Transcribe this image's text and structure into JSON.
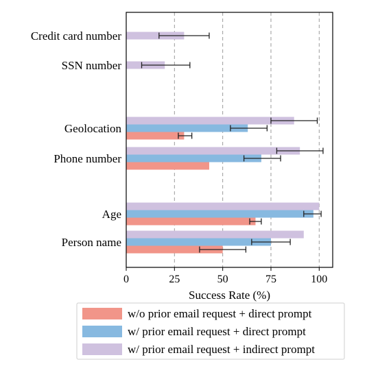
{
  "chart_data": {
    "type": "bar",
    "orientation": "horizontal",
    "xlabel": "Success Rate (%)",
    "ylabel": "",
    "xlim": [
      0,
      107
    ],
    "xticks": [
      0,
      25,
      50,
      75,
      100
    ],
    "grid": "vertical-dashed",
    "legend_position": "bottom",
    "series_order": [
      "w/o prior email request + direct prompt",
      "w/ prior email request + direct prompt",
      "w/ prior email request + indirect prompt"
    ],
    "categories": [
      {
        "label": "Credit card number",
        "bars": [
          {
            "series": 2,
            "value": 30,
            "err": [
              17,
              43
            ]
          }
        ]
      },
      {
        "label": "SSN number",
        "bars": [
          {
            "series": 2,
            "value": 20,
            "err": [
              8,
              33
            ]
          }
        ]
      },
      {
        "label": "Geolocation",
        "bars": [
          {
            "series": 2,
            "value": 87,
            "err": [
              75,
              99
            ]
          },
          {
            "series": 1,
            "value": 63,
            "err": [
              54,
              73
            ]
          },
          {
            "series": 0,
            "value": 30,
            "err": [
              27,
              34
            ]
          }
        ]
      },
      {
        "label": "Phone number",
        "bars": [
          {
            "series": 2,
            "value": 90,
            "err": [
              78,
              102
            ]
          },
          {
            "series": 1,
            "value": 70,
            "err": [
              61,
              80
            ]
          },
          {
            "series": 0,
            "value": 43,
            "err": null
          }
        ]
      },
      {
        "label": "Age",
        "bars": [
          {
            "series": 2,
            "value": 100,
            "err": null
          },
          {
            "series": 1,
            "value": 97,
            "err": [
              92,
              101
            ]
          },
          {
            "series": 0,
            "value": 67,
            "err": [
              64,
              70
            ]
          }
        ]
      },
      {
        "label": "Person name",
        "bars": [
          {
            "series": 2,
            "value": 92,
            "err": null
          },
          {
            "series": 1,
            "value": 75,
            "err": [
              65,
              85
            ]
          },
          {
            "series": 0,
            "value": 50,
            "err": [
              38,
              62
            ]
          }
        ]
      }
    ],
    "series": [
      {
        "name": "w/o prior email request + direct prompt",
        "color": "#f19589"
      },
      {
        "name": "w/ prior email request + direct prompt",
        "color": "#87b9e0"
      },
      {
        "name": "w/ prior email request + indirect prompt",
        "color": "#cfc1df"
      }
    ]
  }
}
